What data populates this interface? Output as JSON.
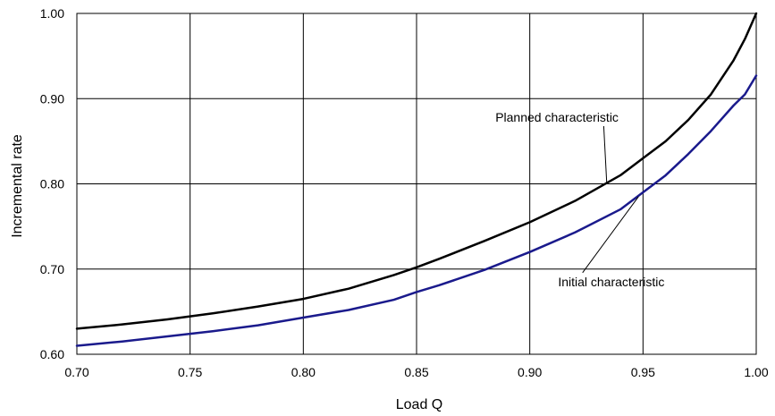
{
  "chart_data": {
    "type": "line",
    "title": "",
    "xlabel": "Load Q",
    "ylabel": "Incremental rate",
    "xlim": [
      0.7,
      1.0
    ],
    "ylim": [
      0.6,
      1.0
    ],
    "x_ticks": [
      "0.70",
      "0.75",
      "0.80",
      "0.85",
      "0.90",
      "0.95",
      "1.00"
    ],
    "y_ticks": [
      "0.60",
      "0.70",
      "0.80",
      "0.90",
      "1.00"
    ],
    "grid": true,
    "legend": "none",
    "series": [
      {
        "name": "Planned characteristic",
        "color": "#000000",
        "x": [
          0.7,
          0.72,
          0.74,
          0.76,
          0.78,
          0.8,
          0.82,
          0.84,
          0.85,
          0.86,
          0.88,
          0.9,
          0.92,
          0.94,
          0.95,
          0.96,
          0.97,
          0.98,
          0.99,
          0.995,
          1.0
        ],
        "y": [
          0.63,
          0.635,
          0.641,
          0.648,
          0.656,
          0.665,
          0.677,
          0.693,
          0.702,
          0.712,
          0.733,
          0.755,
          0.78,
          0.81,
          0.83,
          0.85,
          0.875,
          0.905,
          0.945,
          0.97,
          1.0
        ]
      },
      {
        "name": "Initial characteristic",
        "color": "#1a1a8c",
        "x": [
          0.7,
          0.72,
          0.74,
          0.76,
          0.78,
          0.8,
          0.82,
          0.84,
          0.85,
          0.86,
          0.88,
          0.9,
          0.92,
          0.94,
          0.95,
          0.96,
          0.97,
          0.98,
          0.99,
          0.995,
          1.0
        ],
        "y": [
          0.61,
          0.615,
          0.621,
          0.627,
          0.634,
          0.643,
          0.652,
          0.664,
          0.673,
          0.681,
          0.699,
          0.72,
          0.743,
          0.77,
          0.79,
          0.81,
          0.835,
          0.862,
          0.892,
          0.905,
          0.927
        ]
      }
    ],
    "annotations": [
      {
        "text": "Planned characteristic",
        "series": "Planned characteristic",
        "point_x": 0.934,
        "point_y": 0.8,
        "label_x": 0.912,
        "label_y": 0.873
      },
      {
        "text": "Initial characteristic",
        "series": "Initial characteristic",
        "point_x": 0.948,
        "point_y": 0.785,
        "label_x": 0.936,
        "label_y": 0.68
      }
    ]
  }
}
